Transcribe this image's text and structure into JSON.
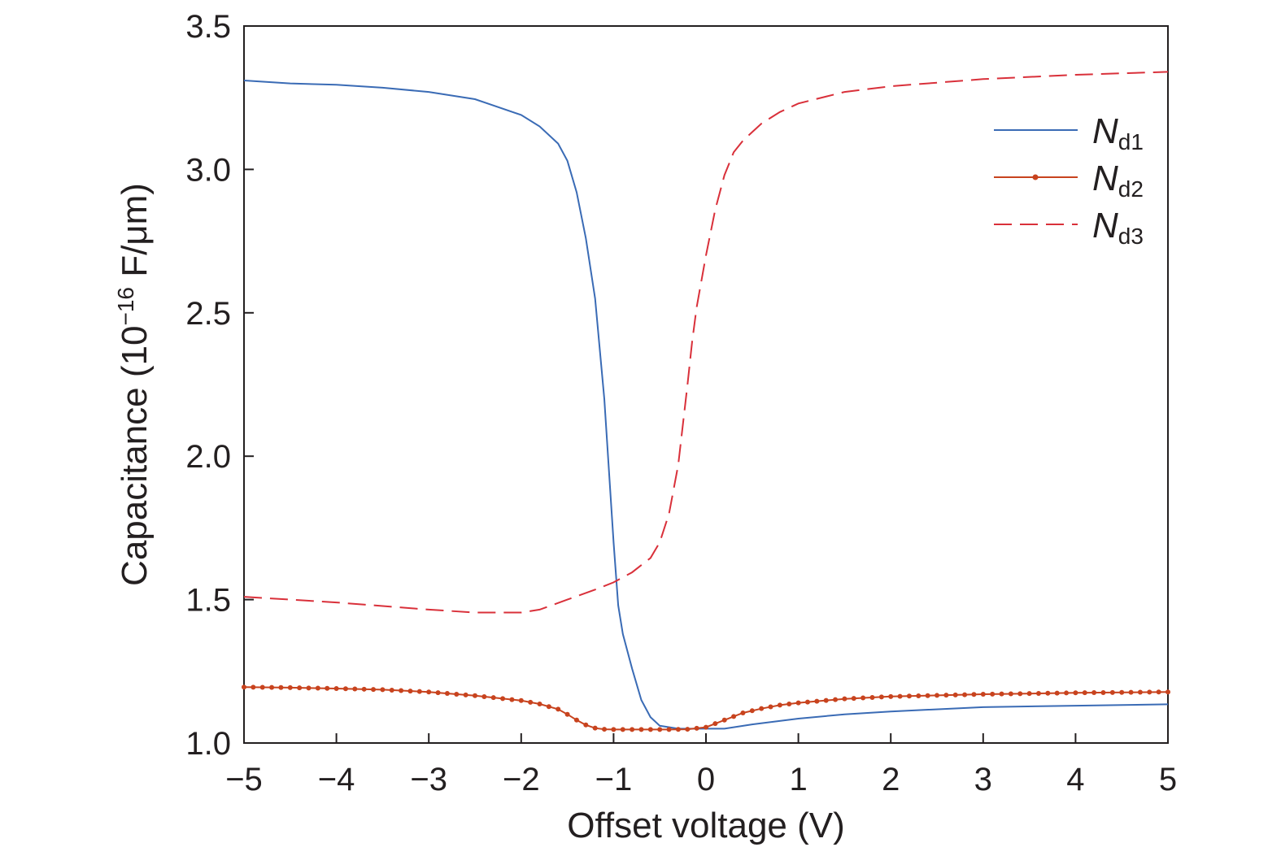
{
  "chart_data": {
    "type": "line",
    "xlabel": "Offset voltage (V)",
    "ylabel": {
      "prefix": "Capacitance (10",
      "exponent": "−16",
      "suffix": " F/μm)"
    },
    "xlim": [
      -5,
      5
    ],
    "ylim": [
      1.0,
      3.5
    ],
    "x_ticks": [
      -5,
      -4,
      -3,
      -2,
      -1,
      0,
      1,
      2,
      3,
      4,
      5
    ],
    "x_tick_labels": [
      "−5",
      "−4",
      "−3",
      "−2",
      "−1",
      "0",
      "1",
      "2",
      "3",
      "4",
      "5"
    ],
    "y_ticks": [
      1.0,
      1.5,
      2.0,
      2.5,
      3.0,
      3.5
    ],
    "y_tick_labels": [
      "1.0",
      "1.5",
      "2.0",
      "2.5",
      "3.0",
      "3.5"
    ],
    "grid": false,
    "legend_position": "top-right",
    "series": [
      {
        "name": "Nd1",
        "legend_main": "N",
        "legend_sub": "d1",
        "color": "#3a6bb5",
        "style": "solid",
        "markers": false,
        "x": [
          -5,
          -4.5,
          -4,
          -3.5,
          -3,
          -2.5,
          -2,
          -1.8,
          -1.6,
          -1.5,
          -1.4,
          -1.3,
          -1.2,
          -1.1,
          -1.05,
          -1.0,
          -0.95,
          -0.9,
          -0.8,
          -0.7,
          -0.6,
          -0.5,
          -0.3,
          0,
          0.2,
          0.5,
          1,
          1.5,
          2,
          3,
          4,
          5
        ],
        "y": [
          3.31,
          3.3,
          3.295,
          3.285,
          3.27,
          3.245,
          3.19,
          3.15,
          3.09,
          3.03,
          2.92,
          2.76,
          2.55,
          2.2,
          1.95,
          1.7,
          1.48,
          1.38,
          1.26,
          1.15,
          1.09,
          1.06,
          1.05,
          1.05,
          1.05,
          1.065,
          1.085,
          1.1,
          1.11,
          1.125,
          1.13,
          1.135
        ]
      },
      {
        "name": "Nd2",
        "legend_main": "N",
        "legend_sub": "d2",
        "color": "#c8431e",
        "style": "solid",
        "markers": true,
        "x": [
          -5,
          -4.5,
          -4,
          -3.5,
          -3,
          -2.5,
          -2,
          -1.8,
          -1.6,
          -1.5,
          -1.4,
          -1.3,
          -1.2,
          -1.1,
          -1.0,
          -0.8,
          -0.6,
          -0.4,
          -0.2,
          0,
          0.2,
          0.4,
          0.6,
          0.8,
          1.0,
          1.5,
          2,
          3,
          4,
          5
        ],
        "y": [
          1.195,
          1.193,
          1.19,
          1.186,
          1.178,
          1.165,
          1.148,
          1.136,
          1.118,
          1.1,
          1.08,
          1.063,
          1.052,
          1.048,
          1.047,
          1.047,
          1.047,
          1.047,
          1.048,
          1.055,
          1.08,
          1.105,
          1.12,
          1.132,
          1.14,
          1.154,
          1.162,
          1.17,
          1.175,
          1.178
        ]
      },
      {
        "name": "Nd3",
        "legend_main": "N",
        "legend_sub": "d3",
        "color": "#d9303a",
        "style": "dashed",
        "markers": false,
        "x": [
          -5,
          -4,
          -3,
          -2.5,
          -2.0,
          -1.8,
          -1.5,
          -1.2,
          -1.0,
          -0.8,
          -0.6,
          -0.5,
          -0.4,
          -0.3,
          -0.2,
          -0.15,
          -0.1,
          0,
          0.1,
          0.2,
          0.3,
          0.4,
          0.5,
          0.6,
          0.8,
          1,
          1.5,
          2,
          3,
          4,
          5
        ],
        "y": [
          1.51,
          1.49,
          1.465,
          1.455,
          1.455,
          1.465,
          1.5,
          1.535,
          1.56,
          1.595,
          1.645,
          1.7,
          1.8,
          1.97,
          2.25,
          2.4,
          2.52,
          2.7,
          2.86,
          2.98,
          3.06,
          3.1,
          3.13,
          3.16,
          3.2,
          3.23,
          3.27,
          3.29,
          3.315,
          3.33,
          3.34
        ]
      }
    ]
  }
}
